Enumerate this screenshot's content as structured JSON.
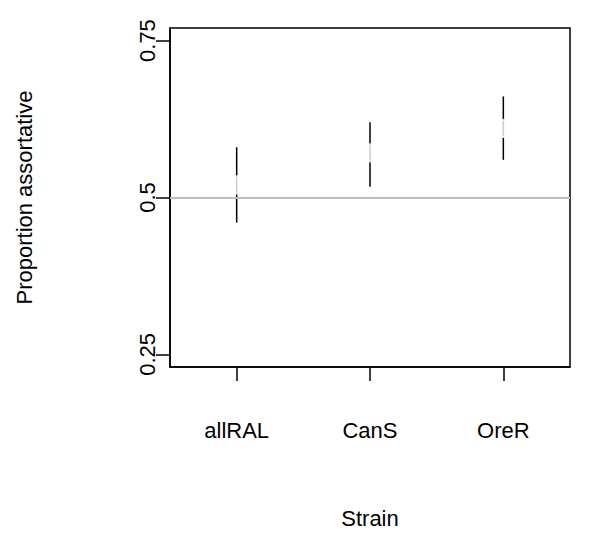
{
  "chart_data": {
    "type": "scatter",
    "x_label": "Strain",
    "y_label": "Proportion assortative",
    "categories": [
      "allRAL",
      "CanS",
      "OreR"
    ],
    "values": [
      0.52,
      0.571,
      0.61
    ],
    "error_low": [
      0.46,
      0.517,
      0.56
    ],
    "error_high": [
      0.58,
      0.62,
      0.661
    ],
    "ylim": [
      0.23,
      0.77
    ],
    "yticks": [
      0.25,
      0.5,
      0.75
    ],
    "reference_line": 0.5,
    "marker": "open_circle",
    "color": "#000000",
    "grid": false
  }
}
